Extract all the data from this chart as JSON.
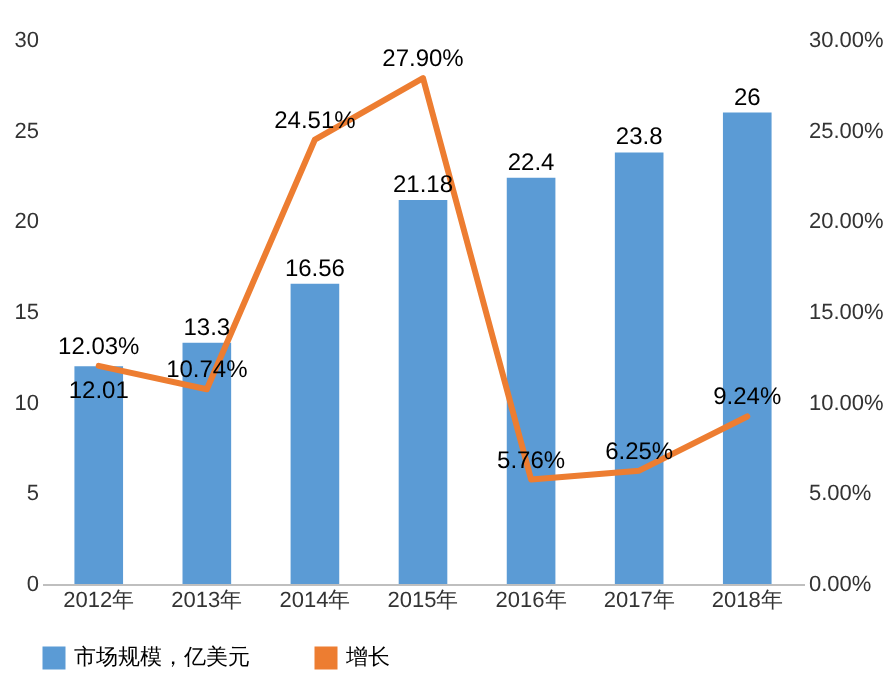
{
  "chart_data": {
    "type": "bar",
    "categories": [
      "2012年",
      "2013年",
      "2014年",
      "2015年",
      "2016年",
      "2017年",
      "2018年"
    ],
    "series": [
      {
        "name": "市场规模，亿美元",
        "color": "#5b9bd5",
        "values": [
          12.01,
          13.3,
          16.56,
          21.18,
          22.4,
          23.8,
          26
        ],
        "value_labels": [
          "12.01",
          "13.3",
          "16.56",
          "21.18",
          "22.4",
          "23.8",
          "26"
        ]
      },
      {
        "name": "增长",
        "type": "line",
        "axis": "y2",
        "color": "#ed7d31",
        "values": [
          12.03,
          10.74,
          24.51,
          27.9,
          5.76,
          6.25,
          9.24
        ],
        "value_labels": [
          "12.03%",
          "10.74%",
          "24.51%",
          "27.90%",
          "5.76%",
          "6.25%",
          "9.24%"
        ]
      }
    ],
    "ylim": [
      0,
      30
    ],
    "yticks": [
      0,
      5,
      10,
      15,
      20,
      25,
      30
    ],
    "y2lim": [
      0,
      30
    ],
    "y2ticks": [
      {
        "value": 0,
        "label": "0.00%"
      },
      {
        "value": 5,
        "label": "5.00%"
      },
      {
        "value": 10,
        "label": "10.00%"
      },
      {
        "value": 15,
        "label": "15.00%"
      },
      {
        "value": 20,
        "label": "20.00%"
      },
      {
        "value": 25,
        "label": "25.00%"
      },
      {
        "value": 30,
        "label": "30.00%"
      }
    ],
    "legend": "bottom",
    "marker": "none",
    "line_style": "solid"
  }
}
